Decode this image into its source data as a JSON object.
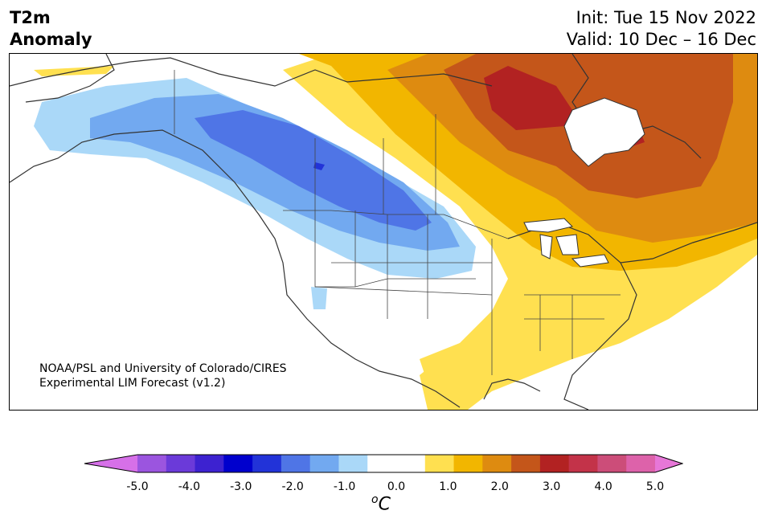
{
  "header": {
    "title_line1": "T2m",
    "title_line2": "Anomaly",
    "init": "Init: Tue 15 Nov 2022",
    "valid": "Valid: 10 Dec – 16 Dec"
  },
  "credit": {
    "line1": "NOAA/PSL and University of Colorado/CIRES",
    "line2": "Experimental LIM Forecast (v1.2)"
  },
  "colorbar": {
    "unit_base": "C",
    "unit_sup": "o",
    "ticks": [
      "-5.0",
      "-4.0",
      "-3.0",
      "-2.0",
      "-1.0",
      "0.0",
      "1.0",
      "2.0",
      "3.0",
      "4.0",
      "5.0"
    ],
    "range": [
      -5.0,
      5.0
    ],
    "colors": [
      "#d670e8",
      "#9b55df",
      "#6b3ad9",
      "#3d22d0",
      "#0000cd",
      "#2233d8",
      "#4f75e6",
      "#72a9f0",
      "#aad8f8",
      "#ffffff",
      "#ffffff",
      "#ffe050",
      "#f2b600",
      "#de8b10",
      "#c4561a",
      "#b22222",
      "#c33349",
      "#cc4d79",
      "#dd62aa",
      "#e777d8"
    ]
  },
  "map": {
    "region": "North America",
    "features": [
      "cold anomaly over western Canada and northern Plains",
      "warm anomaly over eastern Canada and Hudson Bay",
      "warm anomaly over southeastern US and Gulf coast"
    ]
  }
}
